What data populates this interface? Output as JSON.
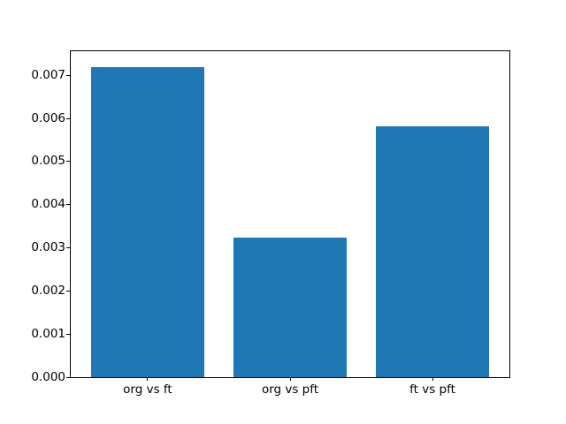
{
  "figure": {
    "background": "#ffffff",
    "text_color": "#000000",
    "spine_color": "#000000"
  },
  "chart_data": {
    "type": "bar",
    "categories": [
      "org vs ft",
      "org vs pft",
      "ft vs pft"
    ],
    "values": [
      0.0072,
      0.00323,
      0.00582
    ],
    "bar_color": "#1f77b4",
    "bar_width": 0.8,
    "ylim": [
      0,
      0.00756
    ],
    "xlim": [
      -0.54,
      2.54
    ],
    "grid": false,
    "legend": false,
    "yticks": [
      {
        "label": "0.000",
        "value": 0.0
      },
      {
        "label": "0.001",
        "value": 0.001
      },
      {
        "label": "0.002",
        "value": 0.002
      },
      {
        "label": "0.003",
        "value": 0.003
      },
      {
        "label": "0.004",
        "value": 0.004
      },
      {
        "label": "0.005",
        "value": 0.005
      },
      {
        "label": "0.006",
        "value": 0.006
      },
      {
        "label": "0.007",
        "value": 0.007
      }
    ]
  }
}
